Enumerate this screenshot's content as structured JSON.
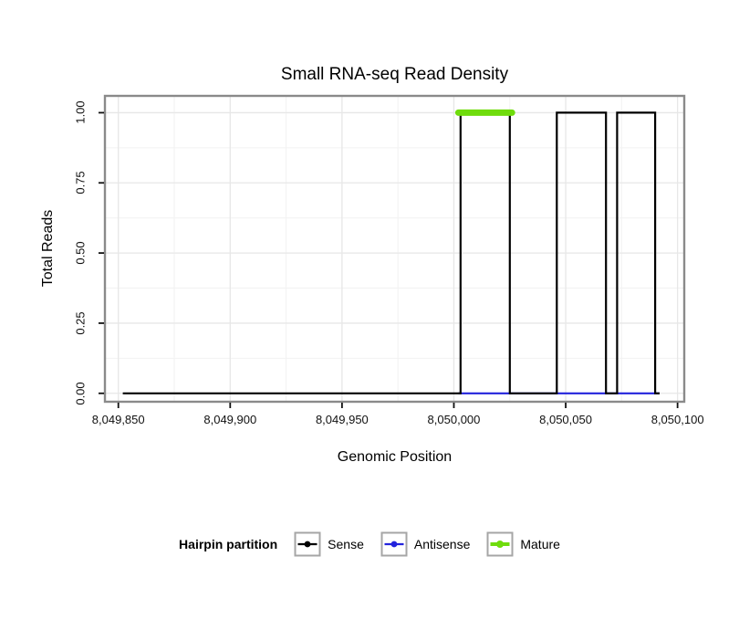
{
  "legend": {
    "title": "Hairpin partition",
    "items": [
      {
        "label": "Sense",
        "color": "#000000",
        "line_width": 2.2,
        "dot_radius": 3.4
      },
      {
        "label": "Antisense",
        "color": "#2323dc",
        "line_width": 2.2,
        "dot_radius": 3.4
      },
      {
        "label": "Mature",
        "color": "#6fdc0c",
        "line_width": 4,
        "dot_radius": 4
      }
    ]
  },
  "chart_data": {
    "type": "line",
    "title": "Small RNA-seq Read Density",
    "xlabel": "Genomic Position",
    "ylabel": "Total Reads",
    "xlim": [
      8049844,
      8050103
    ],
    "ylim": [
      -0.03,
      1.06
    ],
    "x_ticks": [
      8049850,
      8049900,
      8049950,
      8050000,
      8050050,
      8050100
    ],
    "x_tick_labels": [
      "8,049,850",
      "8,049,900",
      "8,049,950",
      "8,050,000",
      "8,050,050",
      "8,050,100"
    ],
    "y_ticks": [
      0,
      0.25,
      0.5,
      0.75,
      1
    ],
    "y_tick_labels": [
      "0.00",
      "0.25",
      "0.50",
      "0.75",
      "1.00"
    ],
    "grid": true,
    "legend_position": "bottom",
    "panel_border_color": "#8a8a8a",
    "major_grid_color": "#e7e7e7",
    "minor_grid_color": "#f2f2f2",
    "series": [
      {
        "name": "Antisense",
        "color": "#2323dc",
        "width": 2.2,
        "points": [
          [
            8050002,
            0
          ],
          [
            8050092,
            0
          ]
        ]
      },
      {
        "name": "Sense",
        "color": "#000000",
        "width": 2.2,
        "points": [
          [
            8049852,
            0
          ],
          [
            8050003,
            0
          ],
          [
            8050003,
            1
          ],
          [
            8050025,
            1
          ],
          [
            8050025,
            0
          ],
          [
            8050046,
            0
          ],
          [
            8050046,
            1
          ],
          [
            8050068,
            1
          ],
          [
            8050068,
            0
          ],
          [
            8050073,
            0
          ],
          [
            8050073,
            1
          ],
          [
            8050090,
            1
          ],
          [
            8050090,
            0
          ],
          [
            8050092,
            0
          ]
        ]
      },
      {
        "name": "Mature",
        "color": "#6fdc0c",
        "width": 7,
        "linecap": "round",
        "points": [
          [
            8050002,
            1
          ],
          [
            8050026,
            1
          ]
        ]
      }
    ]
  }
}
